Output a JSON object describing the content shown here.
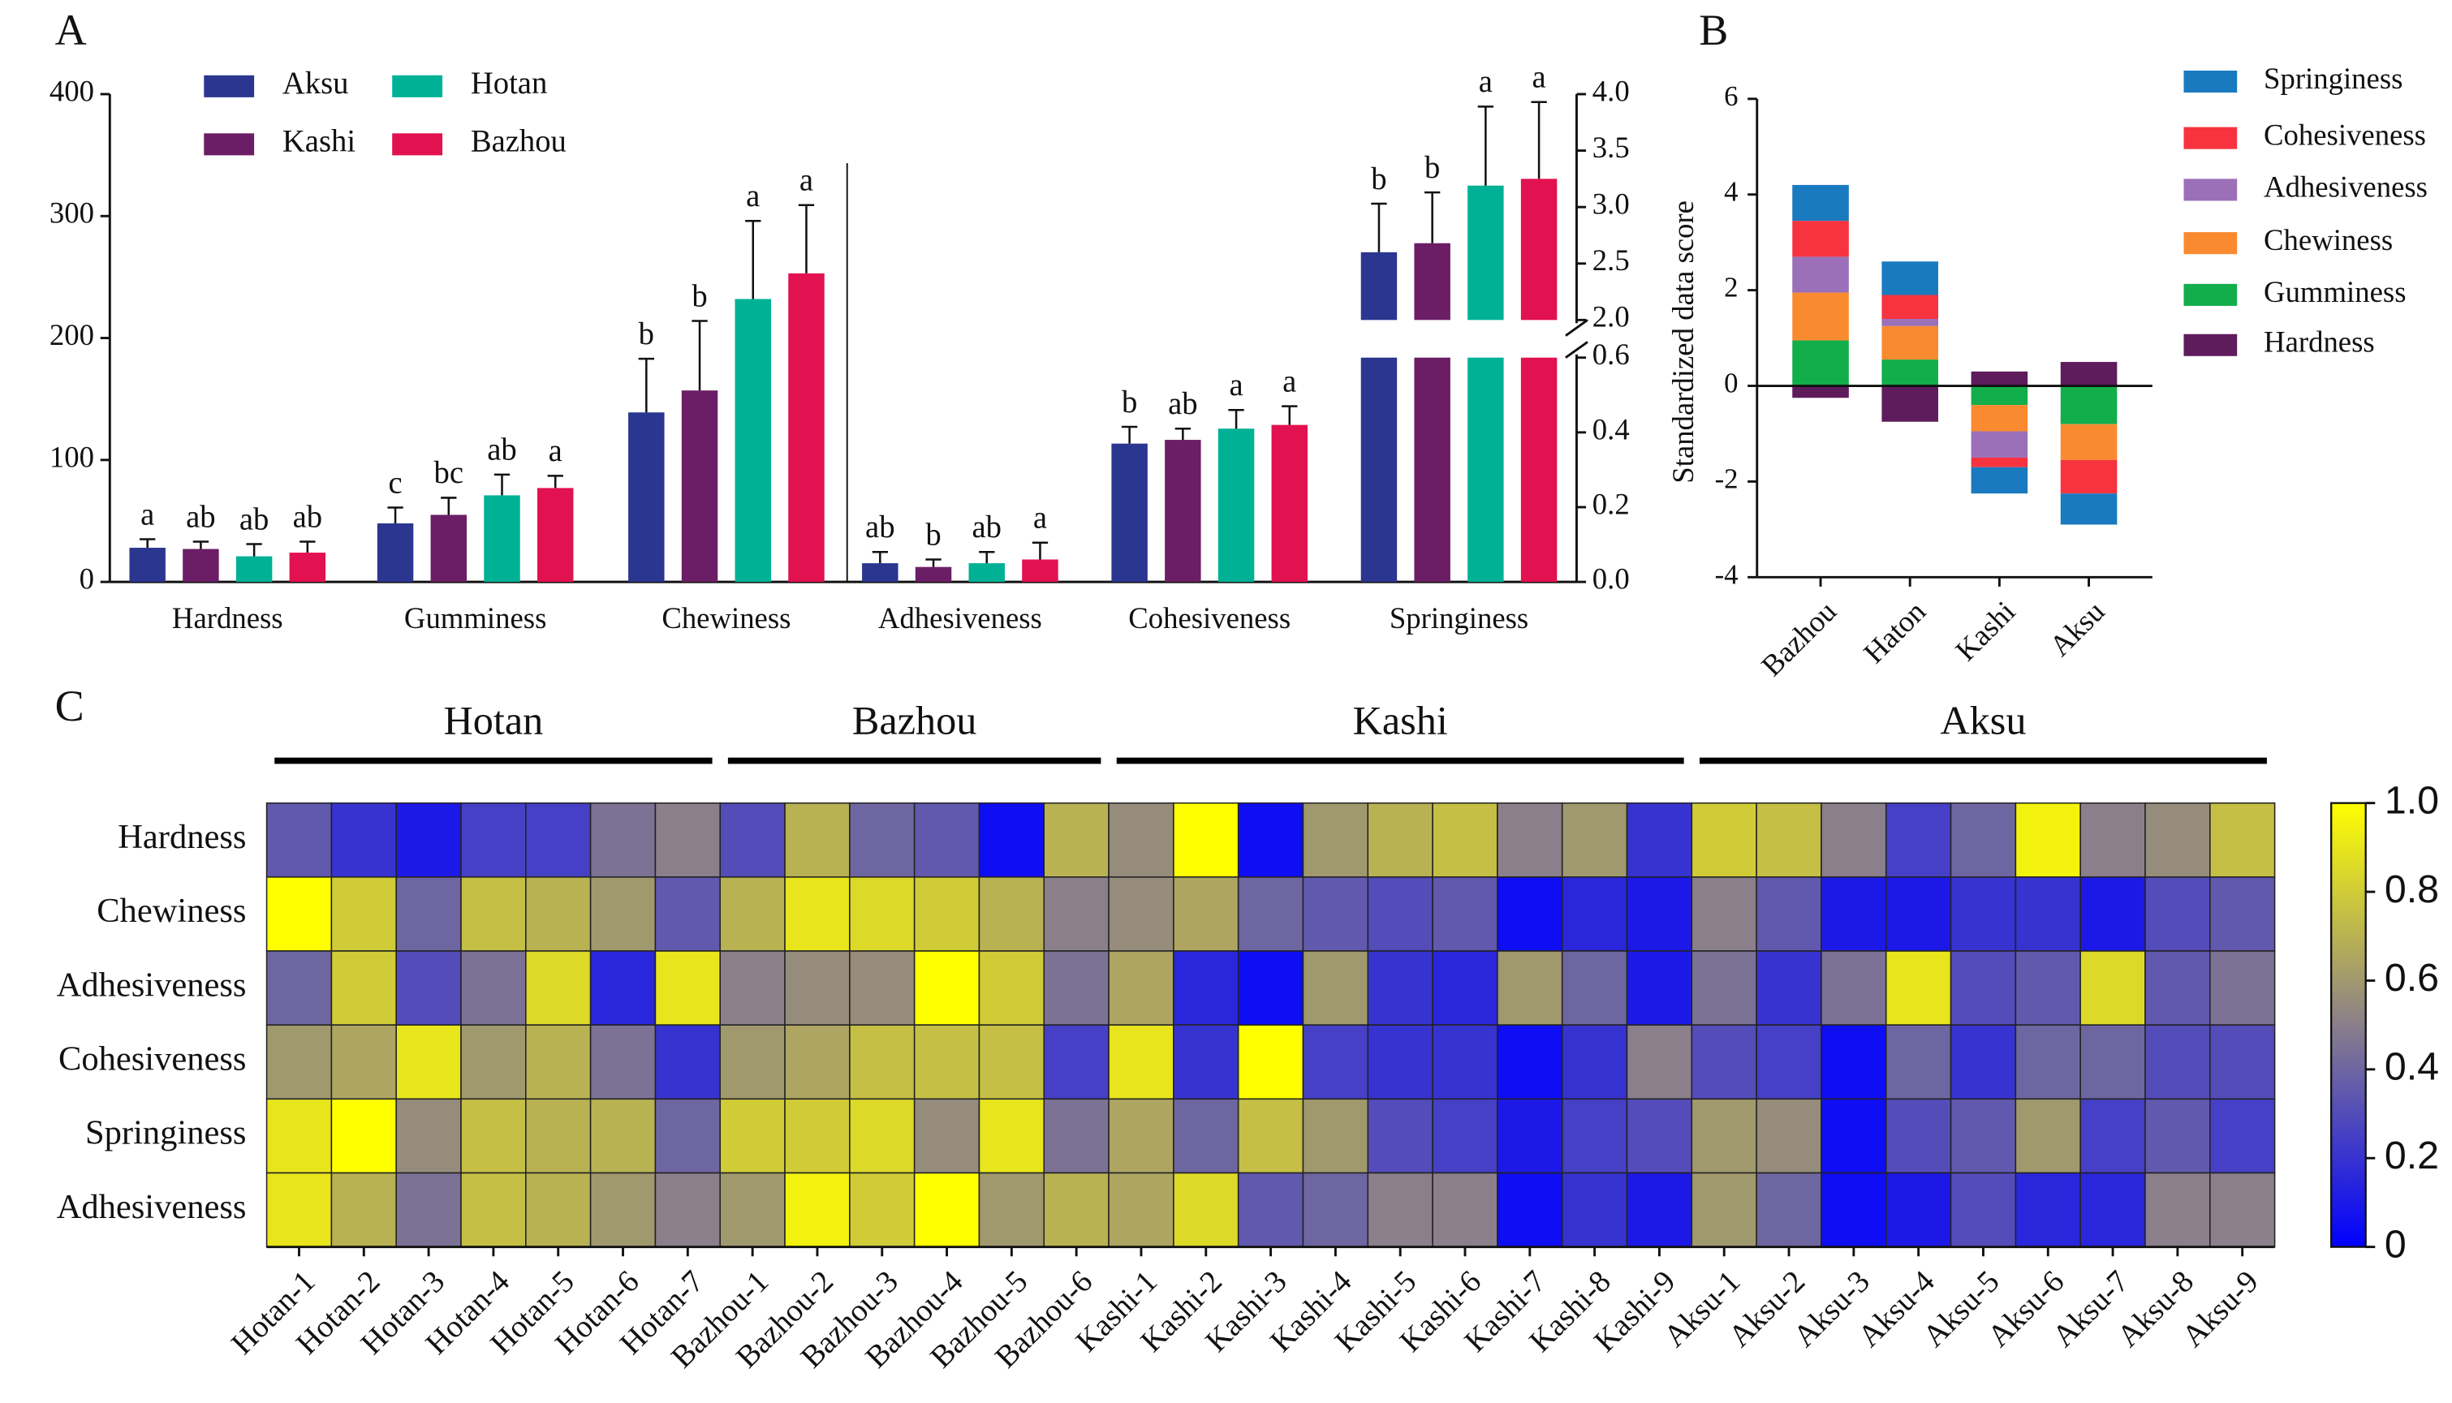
{
  "chart_data": [
    {
      "type": "bar",
      "panel_label": "A",
      "categories": [
        "Hardness",
        "Gumminess",
        "Chewiness",
        "Adhesiveness",
        "Cohesiveness",
        "Springiness"
      ],
      "category_axes": [
        "y",
        "y",
        "y",
        "y2",
        "y2",
        "y2"
      ],
      "series": [
        {
          "name": "Aksu",
          "color": "#2b3690",
          "values": [
            28,
            48,
            139,
            0.05,
            0.37,
            2.6
          ],
          "errors": [
            7,
            13,
            44,
            0.03,
            0.045,
            0.43
          ],
          "letters": [
            "a",
            "c",
            "b",
            "ab",
            "b",
            "b"
          ]
        },
        {
          "name": "Kashi",
          "color": "#6b1e66",
          "values": [
            27,
            55,
            157,
            0.04,
            0.38,
            2.68
          ],
          "errors": [
            6,
            14,
            57,
            0.02,
            0.03,
            0.45
          ],
          "letters": [
            "ab",
            "bc",
            "b",
            "b",
            "ab",
            "b"
          ]
        },
        {
          "name": "Hotan",
          "color": "#00b196",
          "values": [
            21,
            71,
            232,
            0.05,
            0.41,
            3.19
          ],
          "errors": [
            10,
            17,
            64,
            0.03,
            0.05,
            0.7
          ],
          "letters": [
            "ab",
            "ab",
            "a",
            "ab",
            "a",
            "a"
          ]
        },
        {
          "name": "Bazhou",
          "color": "#e2114f",
          "values": [
            24,
            77,
            253,
            0.06,
            0.42,
            3.25
          ],
          "errors": [
            9,
            10,
            56,
            0.045,
            0.05,
            0.68
          ],
          "letters": [
            "ab",
            "a",
            "a",
            "a",
            "a",
            "a"
          ]
        }
      ],
      "ylim": [
        0,
        400
      ],
      "yticks": [
        0,
        100,
        200,
        300,
        400
      ],
      "y2lim": [
        0,
        4
      ],
      "y2_break": [
        0.6,
        2
      ],
      "y2ticks": [
        {
          "value": 0,
          "label": "0.0"
        },
        0.2,
        0.4,
        0.6,
        {
          "value": 2,
          "label": "2.0"
        },
        2.5,
        {
          "value": 3,
          "label": "3.0"
        },
        3.5,
        {
          "value": 4,
          "label": "4.0"
        }
      ]
    },
    {
      "type": "stacked_bar",
      "panel_label": "B",
      "ylabel": "Standardized data score",
      "categories": [
        "Bazhou",
        "Haton",
        "Kashi",
        "Aksu"
      ],
      "series": [
        {
          "name": "Hardness",
          "color": "#5e1c5c",
          "values": [
            -0.25,
            -0.75,
            0.3,
            0.5
          ]
        },
        {
          "name": "Gumminess",
          "color": "#12ae4b",
          "values": [
            0.95,
            0.55,
            -0.4,
            -0.8
          ]
        },
        {
          "name": "Chewiness",
          "color": "#fa8a30",
          "values": [
            1.0,
            0.7,
            -0.55,
            -0.75
          ]
        },
        {
          "name": "Adhesiveness",
          "color": "#9b70b8",
          "values": [
            0.75,
            0.15,
            -0.55,
            0
          ]
        },
        {
          "name": "Cohesiveness",
          "color": "#f7333f",
          "values": [
            0.75,
            0.5,
            -0.2,
            -0.7
          ]
        },
        {
          "name": "Springiness",
          "color": "#1a7abf",
          "values": [
            0.75,
            0.7,
            -0.55,
            -0.65
          ]
        }
      ],
      "legend_reversed": true,
      "ylim": [
        -4,
        6
      ],
      "yticks": [
        -4,
        -2,
        0,
        2,
        4,
        6
      ]
    },
    {
      "type": "heatmap",
      "panel_label": "C",
      "groups": [
        "Hotan",
        "Bazhou",
        "Kashi",
        "Aksu"
      ],
      "categories": [
        "Hotan-1",
        "Hotan-2",
        "Hotan-3",
        "Hotan-4",
        "Hotan-5",
        "Hotan-6",
        "Hotan-7",
        "Bazhou-1",
        "Bazhou-2",
        "Bazhou-3",
        "Bazhou-4",
        "Bazhou-5",
        "Bazhou-6",
        "Kashi-1",
        "Kashi-2",
        "Kashi-3",
        "Kashi-4",
        "Kashi-5",
        "Kashi-6",
        "Kashi-7",
        "Kashi-8",
        "Kashi-9",
        "Aksu-1",
        "Aksu-2",
        "Aksu-3",
        "Aksu-4",
        "Aksu-5",
        "Aksu-6",
        "Aksu-7",
        "Aksu-8",
        "Aksu-9"
      ],
      "rows": [
        "Hardness",
        "Chewiness",
        "Adhesiveness",
        "Cohesiveness",
        "Springiness",
        "Adhesiveness"
      ],
      "values": [
        [
          0.35,
          0.2,
          0.1,
          0.25,
          0.25,
          0.45,
          0.5,
          0.3,
          0.7,
          0.4,
          0.35,
          0.05,
          0.7,
          0.55,
          1.0,
          0.05,
          0.6,
          0.7,
          0.75,
          0.5,
          0.6,
          0.2,
          0.8,
          0.75,
          0.5,
          0.25,
          0.4,
          0.95,
          0.5,
          0.55,
          0.75
        ],
        [
          1.0,
          0.8,
          0.4,
          0.75,
          0.7,
          0.6,
          0.35,
          0.7,
          0.9,
          0.85,
          0.8,
          0.7,
          0.5,
          0.55,
          0.65,
          0.4,
          0.35,
          0.3,
          0.35,
          0.05,
          0.15,
          0.1,
          0.5,
          0.35,
          0.1,
          0.1,
          0.2,
          0.2,
          0.1,
          0.3,
          0.35
        ],
        [
          0.4,
          0.8,
          0.3,
          0.45,
          0.85,
          0.15,
          0.9,
          0.5,
          0.55,
          0.55,
          1.0,
          0.8,
          0.45,
          0.65,
          0.15,
          0.05,
          0.6,
          0.2,
          0.15,
          0.6,
          0.4,
          0.1,
          0.45,
          0.2,
          0.45,
          0.9,
          0.3,
          0.35,
          0.85,
          0.35,
          0.45
        ],
        [
          0.6,
          0.65,
          0.9,
          0.6,
          0.7,
          0.45,
          0.2,
          0.6,
          0.65,
          0.75,
          0.75,
          0.75,
          0.25,
          0.9,
          0.2,
          1.0,
          0.25,
          0.2,
          0.2,
          0.05,
          0.2,
          0.5,
          0.3,
          0.25,
          0.05,
          0.4,
          0.2,
          0.4,
          0.4,
          0.3,
          0.3
        ],
        [
          0.9,
          1.0,
          0.55,
          0.75,
          0.7,
          0.7,
          0.4,
          0.8,
          0.8,
          0.85,
          0.55,
          0.9,
          0.45,
          0.65,
          0.4,
          0.75,
          0.6,
          0.3,
          0.25,
          0.1,
          0.25,
          0.3,
          0.6,
          0.55,
          0.05,
          0.3,
          0.35,
          0.6,
          0.25,
          0.35,
          0.25
        ],
        [
          0.9,
          0.7,
          0.45,
          0.75,
          0.7,
          0.6,
          0.5,
          0.6,
          0.95,
          0.8,
          1.0,
          0.6,
          0.7,
          0.65,
          0.85,
          0.35,
          0.4,
          0.5,
          0.5,
          0.05,
          0.2,
          0.1,
          0.6,
          0.4,
          0.05,
          0.1,
          0.3,
          0.15,
          0.15,
          0.5,
          0.5
        ]
      ],
      "colors": [
        "#0000ff",
        "#8a7f8a",
        "#ffff00"
      ],
      "zlim": [
        0,
        1
      ],
      "zticks": [
        0,
        0.2,
        0.4,
        0.6,
        0.8,
        {
          "value": 1,
          "label": "1.0"
        }
      ]
    }
  ]
}
